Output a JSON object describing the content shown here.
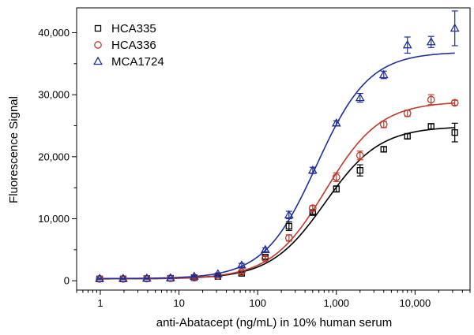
{
  "chart_data": {
    "type": "scatter",
    "title": "",
    "xlabel": "anti-Abatacept (ng/mL) in 10% human serum",
    "ylabel": "Fluorescence Signal",
    "x_scale": "log",
    "xlim": [
      0.5,
      50000
    ],
    "ylim": [
      -1500,
      44000
    ],
    "x_ticks": [
      1,
      10,
      100,
      1000,
      10000
    ],
    "x_tick_labels": [
      "1",
      "10",
      "100",
      "1,000",
      "10,000"
    ],
    "y_ticks": [
      0,
      10000,
      20000,
      30000,
      40000
    ],
    "y_tick_labels": [
      "0",
      "10,000",
      "20,000",
      "30,000",
      "40,000"
    ],
    "grid": false,
    "legend_position": "top-left",
    "x": [
      0.98,
      1.95,
      3.9,
      7.8,
      15.6,
      31.25,
      62.5,
      125,
      250,
      500,
      1000,
      2000,
      4000,
      8000,
      16000,
      32000
    ],
    "series": [
      {
        "name": "HCA335",
        "marker": "square",
        "color": "#000000",
        "values": [
          300,
          300,
          350,
          400,
          500,
          700,
          1200,
          3800,
          8800,
          11000,
          14800,
          17800,
          21200,
          23300,
          24900,
          23900
        ],
        "errors": [
          100,
          100,
          100,
          100,
          100,
          150,
          200,
          300,
          700,
          300,
          500,
          900,
          400,
          400,
          400,
          1500
        ],
        "fit": {
          "bottom": 300,
          "top": 24900,
          "ec50": 720,
          "hill": 1.25
        }
      },
      {
        "name": "HCA336",
        "marker": "circle",
        "color": "#c0392b",
        "values": [
          300,
          300,
          350,
          400,
          500,
          800,
          1400,
          3600,
          6900,
          11700,
          16700,
          20200,
          25200,
          27000,
          29200,
          28700
        ],
        "errors": [
          100,
          100,
          100,
          100,
          100,
          150,
          200,
          300,
          500,
          400,
          700,
          700,
          500,
          500,
          800,
          400
        ],
        "fit": {
          "bottom": 300,
          "top": 28900,
          "ec50": 730,
          "hill": 1.25
        }
      },
      {
        "name": "MCA1724",
        "marker": "triangle",
        "color": "#1f2f9e",
        "values": [
          350,
          350,
          400,
          450,
          700,
          1100,
          2500,
          5000,
          10600,
          17800,
          25400,
          29500,
          33200,
          38000,
          38500,
          40700
        ],
        "errors": [
          100,
          100,
          100,
          100,
          100,
          150,
          300,
          300,
          600,
          500,
          400,
          700,
          600,
          1300,
          900,
          2800
        ],
        "fit": {
          "bottom": 350,
          "top": 36900,
          "ec50": 560,
          "hill": 1.3
        }
      }
    ]
  }
}
